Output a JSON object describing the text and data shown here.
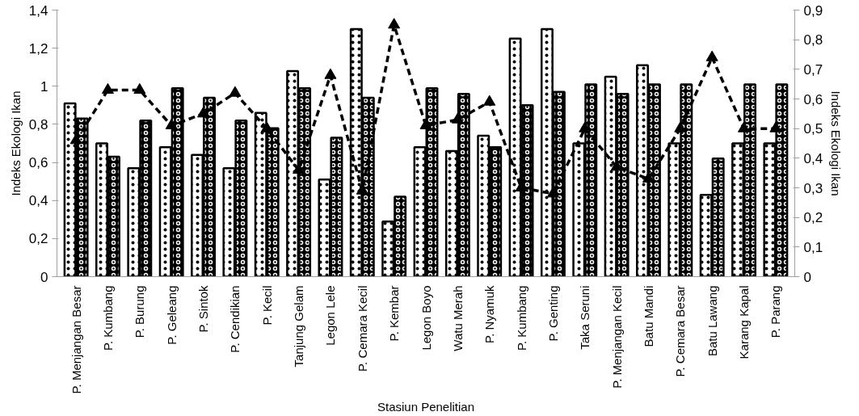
{
  "chart_data": {
    "type": "bar",
    "xlabel": "Stasiun Penelitian",
    "ylabel": "Indeks Ekologi Ikan",
    "y2label": "Indeks Ekologi Ikan",
    "categories": [
      "P. Menjangan Besar",
      "P. Kumbang",
      "P. Burung",
      "P. Geleang",
      "P. Sintok",
      "P. Cendikian",
      "P. Kecil",
      "Tanjung Gelam",
      "Legon Lele",
      "P. Cemara Kecil",
      "P. Kembar",
      "Legon Boyo",
      "Watu Merah",
      "P. Nyamuk",
      "P. Kumbang",
      "P. Genting",
      "Taka Seruni",
      "P. Menjangan Kecil",
      "Batu Mandi",
      "P. Cemara Besar",
      "Batu Lawang",
      "Karang Kapal",
      "P. Parang"
    ],
    "series": [
      {
        "color": "#ffffff",
        "values": [
          0.91,
          0.7,
          0.57,
          0.68,
          0.64,
          0.57,
          0.86,
          1.08,
          0.51,
          1.3,
          0.29,
          0.68,
          0.66,
          0.74,
          1.25,
          1.3,
          0.7,
          1.05,
          1.11,
          0.7,
          0.43,
          0.7,
          0.7
        ]
      },
      {
        "color": "#000000",
        "values": [
          0.83,
          0.63,
          0.82,
          0.99,
          0.94,
          0.82,
          0.78,
          0.99,
          0.73,
          0.94,
          0.42,
          0.99,
          0.96,
          0.68,
          0.9,
          0.97,
          1.01,
          0.96,
          1.01,
          1.01,
          0.62,
          1.01,
          1.01
        ]
      },
      {
        "type": "line",
        "axis": "y2",
        "color": "#000000",
        "marker": "triangle",
        "line_style": "dashed",
        "values": [
          0.46,
          0.63,
          0.63,
          0.51,
          0.55,
          0.62,
          0.5,
          0.36,
          0.68,
          0.29,
          0.85,
          0.51,
          0.53,
          0.59,
          0.3,
          0.28,
          0.5,
          0.37,
          0.33,
          0.5,
          0.74,
          0.5,
          0.5
        ]
      }
    ],
    "ylim": [
      0,
      1.4
    ],
    "yticks": [
      0,
      {
        "value": 0.2,
        "label": "0,2"
      },
      {
        "value": 0.4,
        "label": "0,4"
      },
      {
        "value": 0.6,
        "label": "0,6"
      },
      {
        "value": 0.8,
        "label": "0,8"
      },
      1,
      {
        "value": 1.2,
        "label": "1,2"
      },
      {
        "value": 1.4,
        "label": "1,4"
      }
    ],
    "y2lim": [
      0,
      0.9
    ],
    "y2ticks": [
      0,
      {
        "value": 0.1,
        "label": "0,1"
      },
      {
        "value": 0.2,
        "label": "0,2"
      },
      {
        "value": 0.3,
        "label": "0,3"
      },
      {
        "value": 0.4,
        "label": "0,4"
      },
      {
        "value": 0.5,
        "label": "0,5"
      },
      {
        "value": 0.6,
        "label": "0,6"
      },
      {
        "value": 0.7,
        "label": "0,7"
      },
      {
        "value": 0.8,
        "label": "0,8"
      },
      {
        "value": 0.9,
        "label": "0,9"
      }
    ],
    "grid": false
  }
}
